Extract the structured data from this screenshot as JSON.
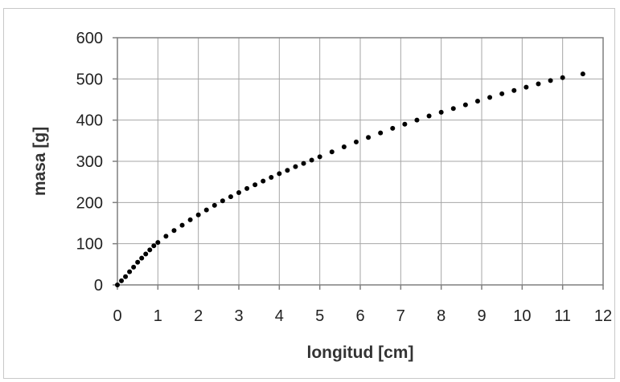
{
  "colors": {
    "grid": "#a6a6a6",
    "axis": "#7f7f7f",
    "marker": "#000000",
    "text": "#222222"
  },
  "chart_data": {
    "type": "scatter",
    "xlabel": "longitud [cm]",
    "ylabel": "masa [g]",
    "xlim": [
      0,
      12
    ],
    "ylim": [
      0,
      600
    ],
    "xticks": [
      0,
      1,
      2,
      3,
      4,
      5,
      6,
      7,
      8,
      9,
      10,
      11,
      12
    ],
    "yticks": [
      0,
      100,
      200,
      300,
      400,
      500,
      600
    ],
    "grid": true,
    "legend": "none",
    "marker": "circle",
    "x": [
      0,
      0.1,
      0.2,
      0.3,
      0.4,
      0.5,
      0.6,
      0.7,
      0.8,
      0.9,
      1.0,
      1.2,
      1.4,
      1.6,
      1.8,
      2.0,
      2.2,
      2.4,
      2.6,
      2.8,
      3.0,
      3.2,
      3.4,
      3.6,
      3.8,
      4.0,
      4.2,
      4.4,
      4.6,
      4.8,
      5.0,
      5.3,
      5.6,
      5.9,
      6.2,
      6.5,
      6.8,
      7.1,
      7.4,
      7.7,
      8.0,
      8.3,
      8.6,
      8.9,
      9.2,
      9.5,
      9.8,
      10.1,
      10.4,
      10.7,
      11.0,
      11.5
    ],
    "y": [
      0,
      10,
      20,
      32,
      43,
      55,
      65,
      75,
      85,
      95,
      103,
      118,
      132,
      145,
      158,
      170,
      182,
      193,
      204,
      214,
      224,
      234,
      243,
      252,
      261,
      270,
      278,
      287,
      295,
      303,
      311,
      323,
      335,
      347,
      358,
      369,
      380,
      390,
      400,
      410,
      419,
      428,
      437,
      446,
      455,
      464,
      472,
      480,
      488,
      496,
      503,
      512
    ]
  }
}
